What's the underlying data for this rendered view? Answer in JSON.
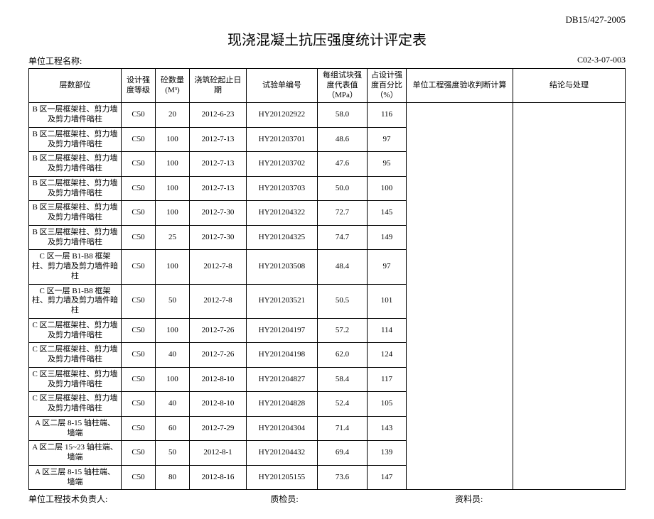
{
  "doc_code": "DB15/427-2005",
  "title": "现浇混凝土抗压强度统计评定表",
  "meta": {
    "project_label": "单位工程名称:",
    "form_no": "C02-3-07-003"
  },
  "headers": {
    "position": "层数部位",
    "grade": "设计强度等级",
    "qty": "砼数量 (M³)",
    "date": "浇筑砼起止日期",
    "specimen": "试验单编号",
    "rep": "每组试块强度代表值（MPa）",
    "pct": "占设计强度百分比（%）",
    "calc": "单位工程强度验收判断计算",
    "result": "结论与处理"
  },
  "rows": [
    {
      "position": "B 区一层框架柱、剪力墙及剪力墙件暗柱",
      "grade": "C50",
      "qty": "20",
      "date": "2012-6-23",
      "specimen": "HY201202922",
      "rep": "58.0",
      "pct": "116"
    },
    {
      "position": "B 区二层框架柱、剪力墙及剪力墙件暗柱",
      "grade": "C50",
      "qty": "100",
      "date": "2012-7-13",
      "specimen": "HY201203701",
      "rep": "48.6",
      "pct": "97"
    },
    {
      "position": "B 区二层框架柱、剪力墙及剪力墙件暗柱",
      "grade": "C50",
      "qty": "100",
      "date": "2012-7-13",
      "specimen": "HY201203702",
      "rep": "47.6",
      "pct": "95"
    },
    {
      "position": "B 区二层框架柱、剪力墙及剪力墙件暗柱",
      "grade": "C50",
      "qty": "100",
      "date": "2012-7-13",
      "specimen": "HY201203703",
      "rep": "50.0",
      "pct": "100"
    },
    {
      "position": "B 区三层框架柱、剪力墙及剪力墙件暗柱",
      "grade": "C50",
      "qty": "100",
      "date": "2012-7-30",
      "specimen": "HY201204322",
      "rep": "72.7",
      "pct": "145"
    },
    {
      "position": "B 区三层框架柱、剪力墙及剪力墙件暗柱",
      "grade": "C50",
      "qty": "25",
      "date": "2012-7-30",
      "specimen": "HY201204325",
      "rep": "74.7",
      "pct": "149"
    },
    {
      "position": "C 区一层 B1-B8 框架柱、剪力墙及剪力墙件暗柱",
      "grade": "C50",
      "qty": "100",
      "date": "2012-7-8",
      "specimen": "HY201203508",
      "rep": "48.4",
      "pct": "97"
    },
    {
      "position": "C 区一层 B1-B8 框架柱、剪力墙及剪力墙件暗柱",
      "grade": "C50",
      "qty": "50",
      "date": "2012-7-8",
      "specimen": "HY201203521",
      "rep": "50.5",
      "pct": "101"
    },
    {
      "position": "C 区二层框架柱、剪力墙及剪力墙件暗柱",
      "grade": "C50",
      "qty": "100",
      "date": "2012-7-26",
      "specimen": "HY201204197",
      "rep": "57.2",
      "pct": "114"
    },
    {
      "position": "C 区二层框架柱、剪力墙及剪力墙件暗柱",
      "grade": "C50",
      "qty": "40",
      "date": "2012-7-26",
      "specimen": "HY201204198",
      "rep": "62.0",
      "pct": "124"
    },
    {
      "position": "C 区三层框架柱、剪力墙及剪力墙件暗柱",
      "grade": "C50",
      "qty": "100",
      "date": "2012-8-10",
      "specimen": "HY201204827",
      "rep": "58.4",
      "pct": "117"
    },
    {
      "position": "C 区三层框架柱、剪力墙及剪力墙件暗柱",
      "grade": "C50",
      "qty": "40",
      "date": "2012-8-10",
      "specimen": "HY201204828",
      "rep": "52.4",
      "pct": "105"
    },
    {
      "position": "A 区二层 8-15 轴柱端、墙端",
      "grade": "C50",
      "qty": "60",
      "date": "2012-7-29",
      "specimen": "HY201204304",
      "rep": "71.4",
      "pct": "143"
    },
    {
      "position": "A 区二层 15~23 轴柱端、墙端",
      "grade": "C50",
      "qty": "50",
      "date": "2012-8-1",
      "specimen": "HY201204432",
      "rep": "69.4",
      "pct": "139"
    },
    {
      "position": "A 区三层 8-15 轴柱端、墙端",
      "grade": "C50",
      "qty": "80",
      "date": "2012-8-16",
      "specimen": "HY201205155",
      "rep": "73.6",
      "pct": "147"
    }
  ],
  "footer": {
    "lead": "单位工程技术负责人:",
    "qc": "质检员:",
    "clerk": "资料员:"
  }
}
